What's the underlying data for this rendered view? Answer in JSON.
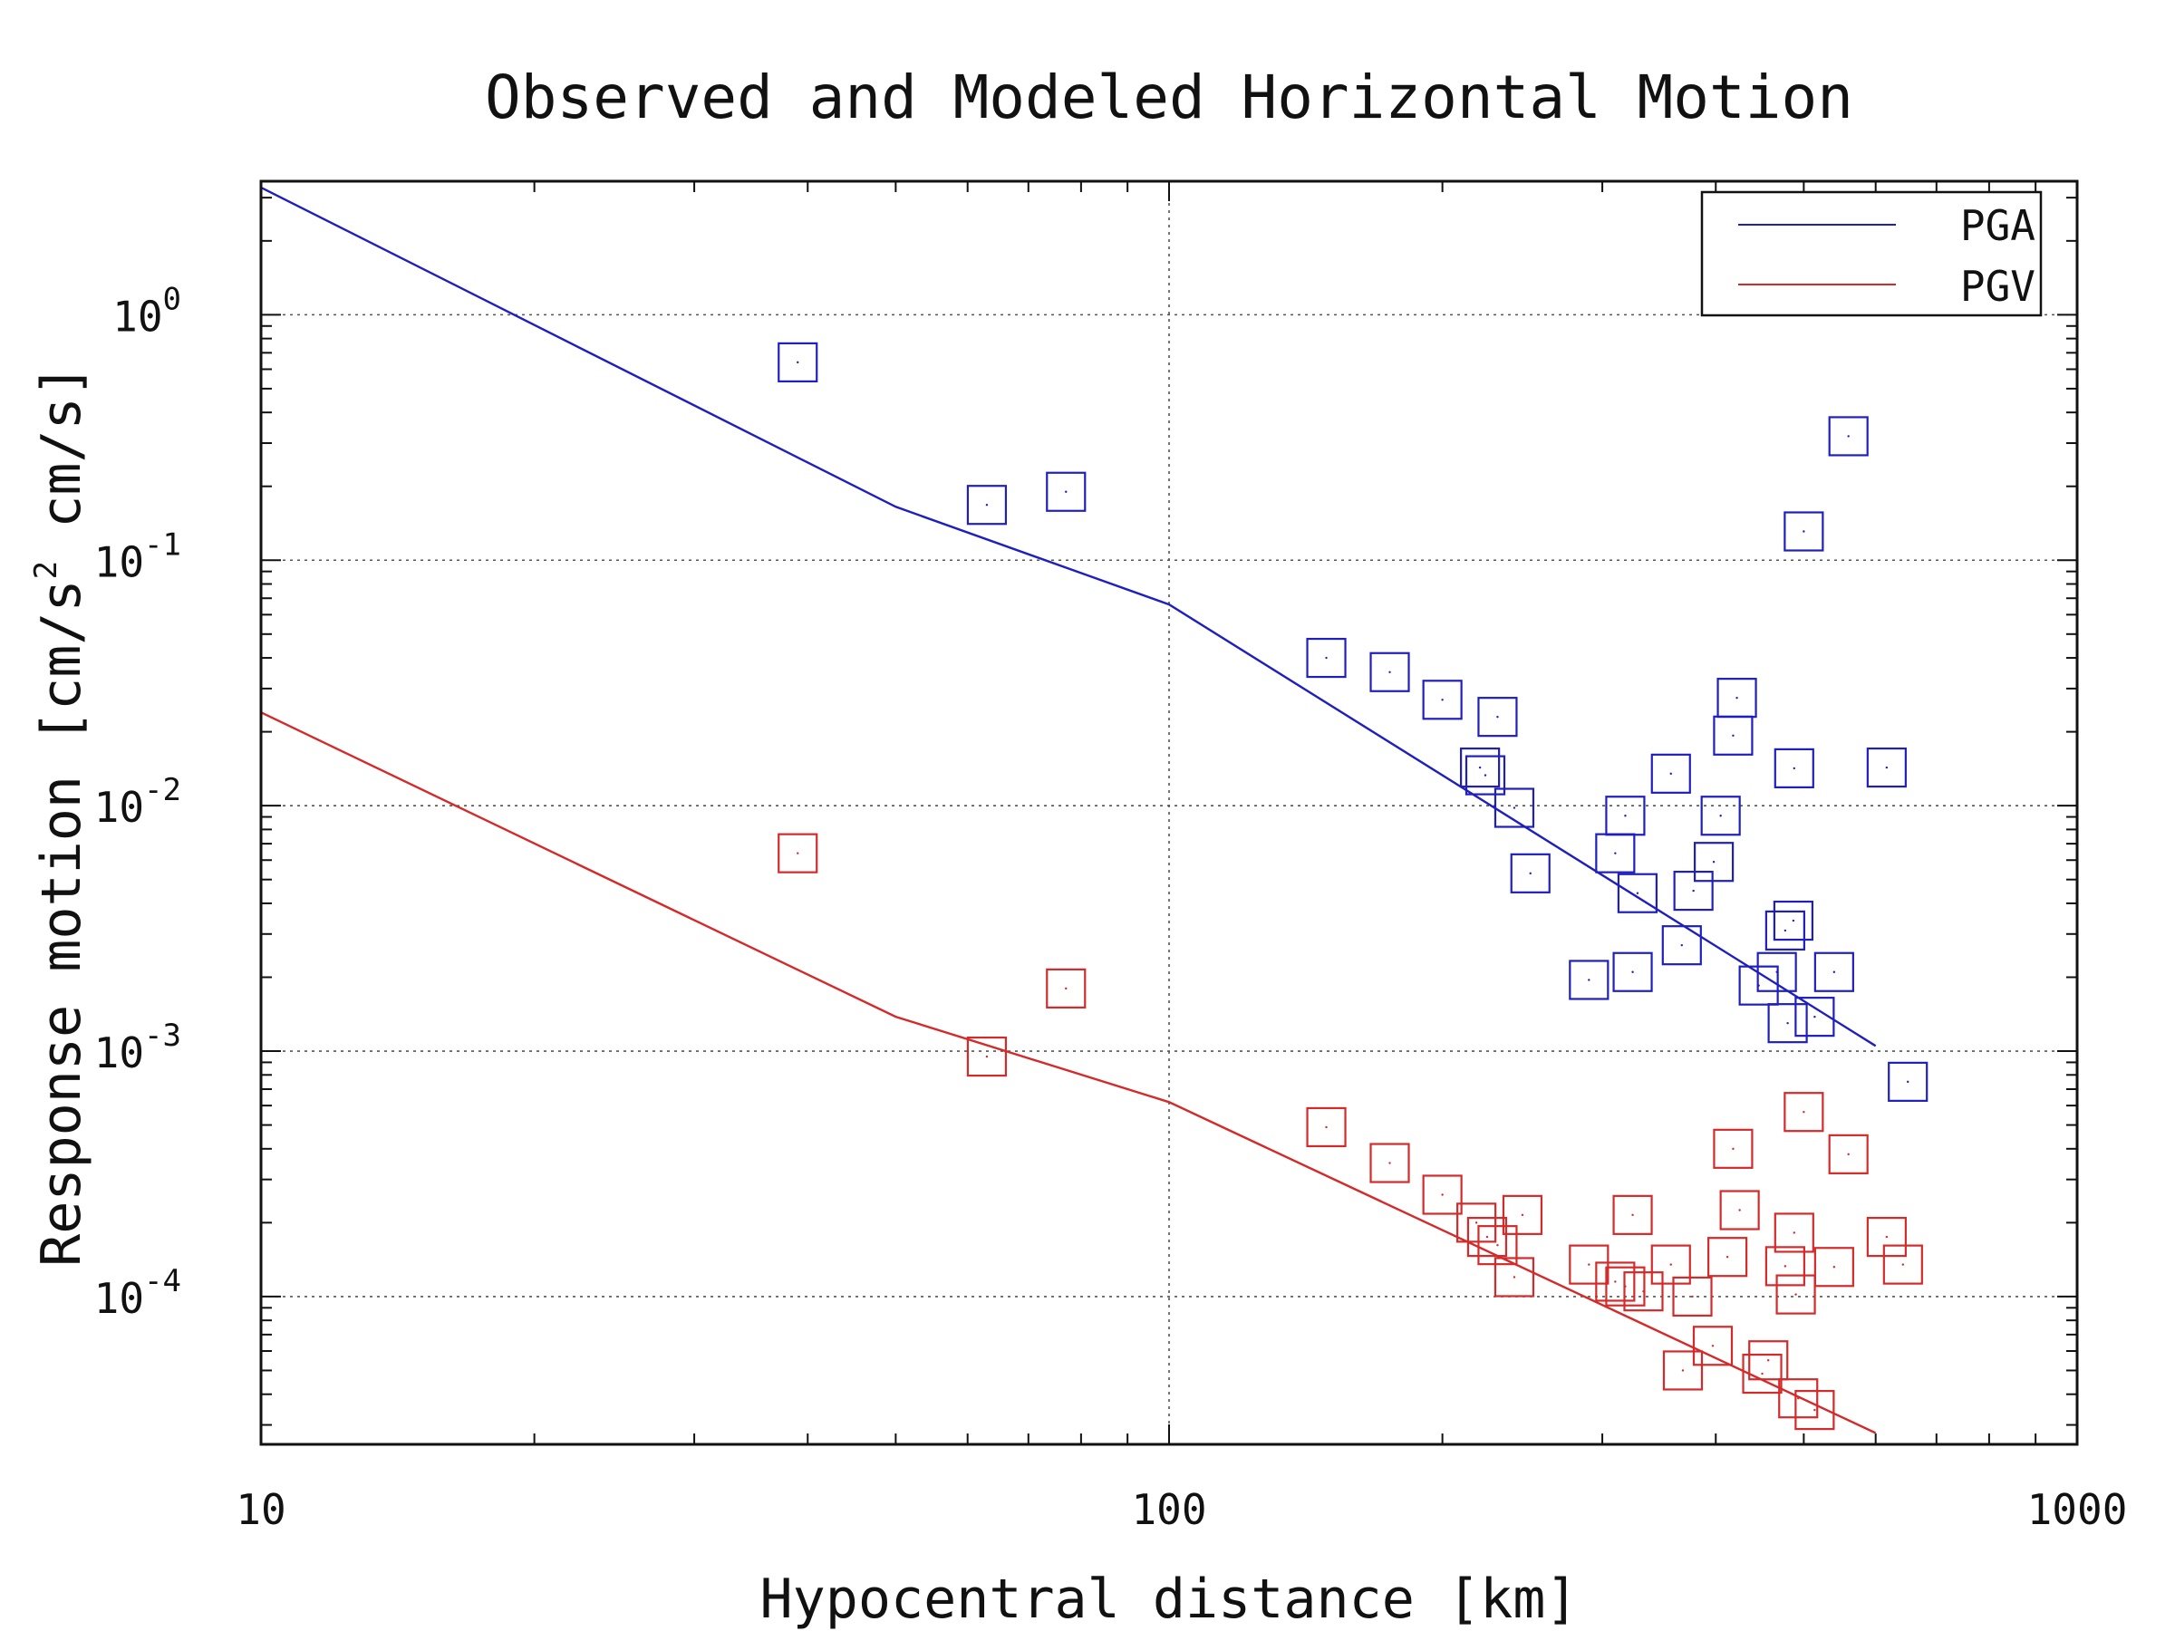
{
  "chart_data": {
    "type": "scatter",
    "title": "Observed and Modeled Horizontal Motion",
    "xlabel": "Hypocentral distance [km]",
    "ylabel": "Response motion  [cm/s",
    "ylabel_sup": "2",
    "ylabel_tail": "  cm/s]",
    "xscale": "log",
    "yscale": "log",
    "xlim": [
      10,
      1000
    ],
    "ylim": [
      2.5e-05,
      3.5
    ],
    "x_ticks": [
      {
        "value": 10,
        "label": "10"
      },
      {
        "value": 100,
        "label": "100"
      },
      {
        "value": 1000,
        "label": "1000"
      }
    ],
    "y_ticks": [
      {
        "value": 1,
        "base": "10",
        "exp": "0"
      },
      {
        "value": 0.1,
        "base": "10",
        "exp": "-1"
      },
      {
        "value": 0.01,
        "base": "10",
        "exp": "-2"
      },
      {
        "value": 0.001,
        "base": "10",
        "exp": "-3"
      },
      {
        "value": 0.0001,
        "base": "10",
        "exp": "-4"
      }
    ],
    "grid": true,
    "legend_position": "top-right",
    "series": [
      {
        "name": "PGA",
        "color": "#1f1fbf",
        "model": [
          [
            10,
            3.3
          ],
          [
            50,
            0.165
          ],
          [
            100,
            0.066
          ],
          [
            600,
            0.00105
          ]
        ],
        "points": [
          [
            39,
            0.64
          ],
          [
            63,
            0.168
          ],
          [
            77,
            0.19
          ],
          [
            149,
            0.04
          ],
          [
            175,
            0.035
          ],
          [
            200,
            0.027
          ],
          [
            230,
            0.023
          ],
          [
            220,
            0.0143
          ],
          [
            223,
            0.0133
          ],
          [
            240,
            0.0098
          ],
          [
            250,
            0.0053
          ],
          [
            310,
            0.0064
          ],
          [
            318,
            0.0091
          ],
          [
            328,
            0.0044
          ],
          [
            357,
            0.0135
          ],
          [
            378,
            0.0045
          ],
          [
            398,
            0.0059
          ],
          [
            405,
            0.0091
          ],
          [
            418,
            0.0193
          ],
          [
            422,
            0.0275
          ],
          [
            488,
            0.0142
          ],
          [
            500,
            0.131
          ],
          [
            560,
            0.32
          ],
          [
            617,
            0.0143
          ],
          [
            290,
            0.00195
          ],
          [
            324,
            0.0021
          ],
          [
            367,
            0.0027
          ],
          [
            446,
            0.00185
          ],
          [
            467,
            0.0021
          ],
          [
            477,
            0.0031
          ],
          [
            487,
            0.0034
          ],
          [
            480,
            0.0013
          ],
          [
            514,
            0.00138
          ],
          [
            540,
            0.0021
          ],
          [
            651,
            0.00075
          ]
        ]
      },
      {
        "name": "PGV",
        "color": "#d42a2a",
        "model": [
          [
            10,
            0.024
          ],
          [
            50,
            0.00138
          ],
          [
            100,
            0.00062
          ],
          [
            600,
            2.78e-05
          ]
        ],
        "points": [
          [
            39,
            0.0064
          ],
          [
            77,
            0.0018
          ],
          [
            63,
            0.00095
          ],
          [
            149,
            0.00049
          ],
          [
            175,
            0.00035
          ],
          [
            200,
            0.00026
          ],
          [
            218,
            0.0002
          ],
          [
            224,
            0.000175
          ],
          [
            230,
            0.000162
          ],
          [
            245,
            0.000215
          ],
          [
            240,
            0.00012
          ],
          [
            290,
            0.000135
          ],
          [
            310,
            0.000115
          ],
          [
            318,
            0.00011
          ],
          [
            324,
            0.000215
          ],
          [
            333,
            0.000105
          ],
          [
            357,
            0.000135
          ],
          [
            377,
            0.0001
          ],
          [
            368,
            5e-05
          ],
          [
            397,
            6.3e-05
          ],
          [
            412,
            0.000145
          ],
          [
            418,
            0.0004
          ],
          [
            425,
            0.000225
          ],
          [
            450,
            4.85e-05
          ],
          [
            457,
            5.5e-05
          ],
          [
            477,
            0.000133
          ],
          [
            488,
            0.000182
          ],
          [
            490,
            0.000102
          ],
          [
            493,
            3.85e-05
          ],
          [
            514,
            3.45e-05
          ],
          [
            500,
            0.000565
          ],
          [
            540,
            0.000132
          ],
          [
            560,
            0.00038
          ],
          [
            617,
            0.000175
          ],
          [
            643,
            0.000135
          ]
        ]
      }
    ]
  }
}
